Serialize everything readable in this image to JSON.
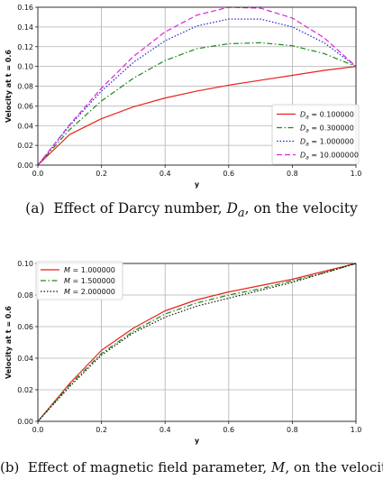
{
  "chart_data": [
    {
      "type": "line",
      "xlabel": "y",
      "ylabel": "Velocity at t = 0.6",
      "xlim": [
        0.0,
        1.0
      ],
      "ylim": [
        0.0,
        0.16
      ],
      "xticks": [
        "0.0",
        "0.2",
        "0.4",
        "0.6",
        "0.8",
        "1.0"
      ],
      "yticks": [
        "0.00",
        "0.02",
        "0.04",
        "0.06",
        "0.08",
        "0.10",
        "0.12",
        "0.14",
        "0.16"
      ],
      "grid": true,
      "legend": "bottom-right",
      "x": [
        0.0,
        0.1,
        0.2,
        0.3,
        0.4,
        0.5,
        0.6,
        0.7,
        0.8,
        0.9,
        1.0
      ],
      "series": [
        {
          "name_prefix": "D",
          "name_sub": "a",
          "name_value": " = 0.100000",
          "color": "#e8221c",
          "dash": "solid",
          "values": [
            0.0,
            0.031,
            0.047,
            0.059,
            0.068,
            0.075,
            0.081,
            0.086,
            0.091,
            0.096,
            0.1
          ]
        },
        {
          "name_prefix": "D",
          "name_sub": "a",
          "name_value": " = 0.300000",
          "color": "#1a8a1a",
          "dash": "dashdot",
          "values": [
            0.0,
            0.036,
            0.065,
            0.088,
            0.106,
            0.118,
            0.123,
            0.124,
            0.121,
            0.113,
            0.1
          ]
        },
        {
          "name_prefix": "D",
          "name_sub": "a",
          "name_value": " = 1.000000",
          "color": "#2222cc",
          "dash": "dotted",
          "values": [
            0.0,
            0.04,
            0.075,
            0.104,
            0.126,
            0.141,
            0.148,
            0.148,
            0.14,
            0.124,
            0.1
          ]
        },
        {
          "name_prefix": "D",
          "name_sub": "a",
          "name_value": " = 10.000000",
          "color": "#dd22dd",
          "dash": "dashed",
          "values": [
            0.0,
            0.041,
            0.078,
            0.11,
            0.135,
            0.152,
            0.16,
            0.159,
            0.149,
            0.129,
            0.1
          ]
        }
      ]
    },
    {
      "type": "line",
      "xlabel": "y",
      "ylabel": "Velocity at t = 0.6",
      "xlim": [
        0.0,
        1.0
      ],
      "ylim": [
        0.0,
        0.1
      ],
      "xticks": [
        "0.0",
        "0.2",
        "0.4",
        "0.6",
        "0.8",
        "1.0"
      ],
      "yticks": [
        "0.00",
        "0.02",
        "0.04",
        "0.06",
        "0.08",
        "0.10"
      ],
      "grid": true,
      "legend": "top-left",
      "x": [
        0.0,
        0.1,
        0.2,
        0.3,
        0.4,
        0.5,
        0.6,
        0.7,
        0.8,
        0.9,
        1.0
      ],
      "series": [
        {
          "name_prefix": "M",
          "name_sub": "",
          "name_value": " = 1.000000",
          "color": "#e8221c",
          "dash": "solid",
          "values": [
            0.0,
            0.024,
            0.045,
            0.059,
            0.07,
            0.077,
            0.082,
            0.086,
            0.09,
            0.095,
            0.1
          ]
        },
        {
          "name_prefix": "M",
          "name_sub": "",
          "name_value": " = 1.500000",
          "color": "#1a8a1a",
          "dash": "dashdot",
          "values": [
            0.0,
            0.023,
            0.043,
            0.057,
            0.068,
            0.075,
            0.08,
            0.084,
            0.089,
            0.094,
            0.1
          ]
        },
        {
          "name_prefix": "M",
          "name_sub": "",
          "name_value": " = 2.000000",
          "color": "#111111",
          "dash": "dotted",
          "values": [
            0.0,
            0.022,
            0.042,
            0.056,
            0.066,
            0.073,
            0.078,
            0.083,
            0.088,
            0.094,
            0.1
          ]
        }
      ]
    }
  ],
  "captions": {
    "a": {
      "label": "(a)",
      "pre": "Effect of Darcy number, ",
      "sym": "D",
      "sub": "a",
      "post": ", on the velocity"
    },
    "b": {
      "label": "(b)",
      "pre": "Effect of magnetic field parameter, ",
      "sym": "M",
      "post": ", on the velocity"
    }
  }
}
